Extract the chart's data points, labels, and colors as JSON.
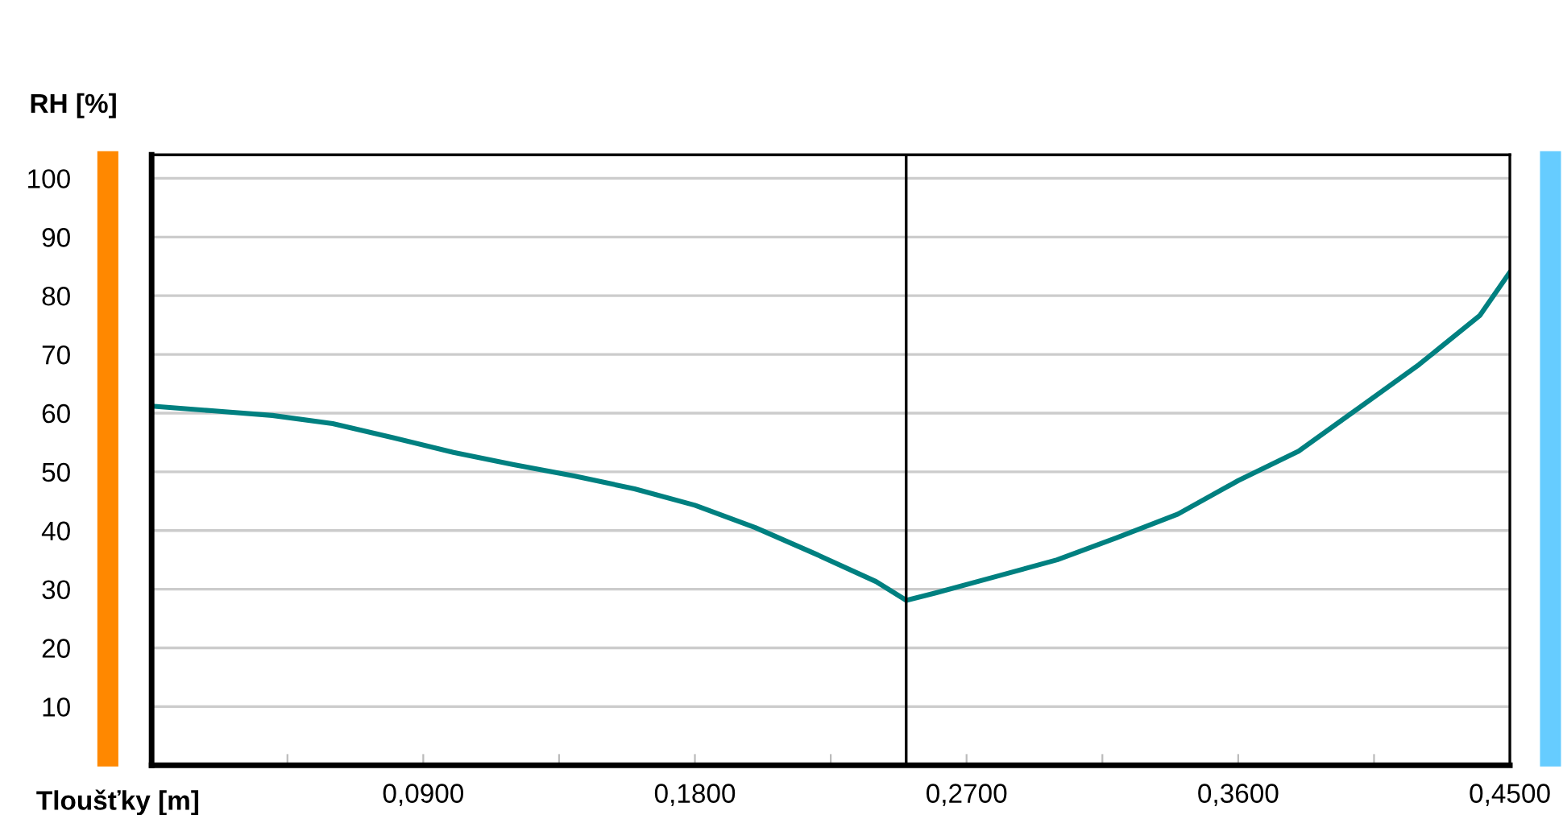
{
  "chart_data": {
    "type": "line",
    "xlabel": "Tloušťky [m]",
    "ylabel": "RH [%]",
    "x": [
      0,
      0.02,
      0.04,
      0.06,
      0.08,
      0.1,
      0.12,
      0.14,
      0.16,
      0.18,
      0.2,
      0.22,
      0.24,
      0.25,
      0.26,
      0.28,
      0.3,
      0.32,
      0.34,
      0.36,
      0.38,
      0.4,
      0.42,
      0.44,
      0.45
    ],
    "series": [
      {
        "color": "#008080",
        "values": [
          61.2,
          60.4,
          59.6,
          58.2,
          55.8,
          53.3,
          51.2,
          49.3,
          47.1,
          44.3,
          40.5,
          36,
          31.3,
          28.1,
          29.4,
          32.2,
          35,
          38.8,
          42.8,
          48.5,
          53.5,
          60.9,
          68.3,
          76.6,
          84
        ]
      }
    ],
    "xlim": [
      0,
      0.45
    ],
    "ylim": [
      0,
      104
    ],
    "xticks": [
      {
        "value": 0.045,
        "label": null
      },
      {
        "value": 0.09,
        "label": "0,0900"
      },
      {
        "value": 0.135,
        "label": null
      },
      {
        "value": 0.18,
        "label": "0,1800"
      },
      {
        "value": 0.225,
        "label": null
      },
      {
        "value": 0.27,
        "label": "0,2700"
      },
      {
        "value": 0.315,
        "label": null
      },
      {
        "value": 0.36,
        "label": "0,3600"
      },
      {
        "value": 0.405,
        "label": null
      },
      {
        "value": 0.45,
        "label": "0,4500"
      }
    ],
    "yticks": [
      10,
      20,
      30,
      40,
      50,
      60,
      70,
      80,
      90,
      100
    ],
    "grid": "y",
    "ref_lines": [
      {
        "axis": "x",
        "value": 0.25,
        "color": "#000000"
      }
    ]
  }
}
